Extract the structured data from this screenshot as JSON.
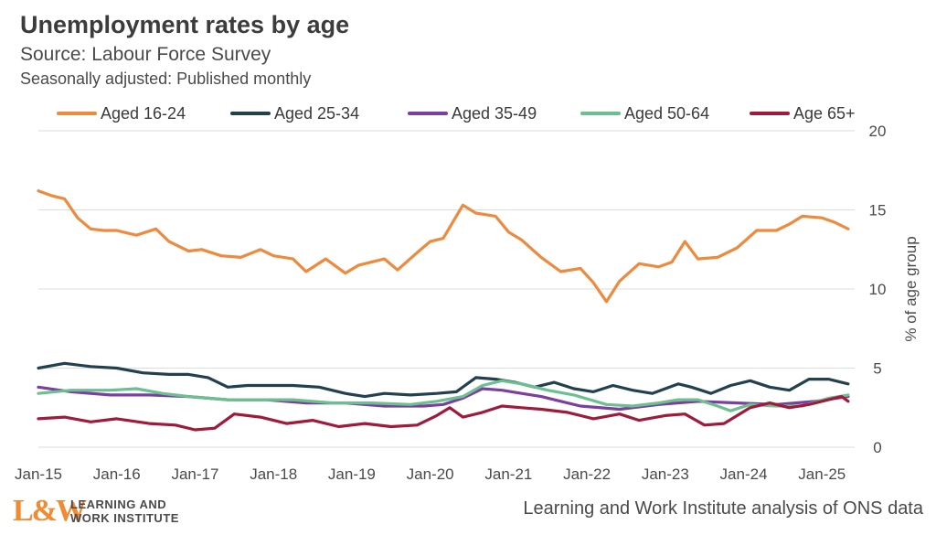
{
  "header": {
    "title": "Unemployment rates by age",
    "subtitle": "Source: Labour Force Survey",
    "subtitle2": "Seasonally adjusted: Published monthly"
  },
  "footer": {
    "logo_mark": "L&W",
    "logo_line1": "LEARNING AND",
    "logo_line2": "WORK INSTITUTE",
    "credit": "Learning and Work Institute analysis of ONS data"
  },
  "colors": {
    "aged_16_24": "#ee8a3e",
    "aged_25_34": "#23404f",
    "aged_35_49": "#7b3fa0",
    "aged_50_64": "#6cbf8e",
    "aged_65_plus": "#9e1b3c",
    "gridline": "#dcdcdc",
    "axis_text": "#4a4a4a"
  },
  "chart_data": {
    "type": "line",
    "ylabel": "% of age group",
    "ylim": [
      0,
      20
    ],
    "yticks": [
      "0",
      "5",
      "10",
      "15",
      "20"
    ],
    "y_axis_side": "right",
    "grid": "horizontal",
    "legend_position": "top",
    "xlim": [
      "2015-01",
      "2025-06"
    ],
    "xticks": [
      {
        "label": "Jan-15",
        "date": "2015-01"
      },
      {
        "label": "Jan-16",
        "date": "2016-01"
      },
      {
        "label": "Jan-17",
        "date": "2017-01"
      },
      {
        "label": "Jan-18",
        "date": "2018-01"
      },
      {
        "label": "Jan-19",
        "date": "2019-01"
      },
      {
        "label": "Jan-20",
        "date": "2020-01"
      },
      {
        "label": "Jan-21",
        "date": "2021-01"
      },
      {
        "label": "Jan-22",
        "date": "2022-01"
      },
      {
        "label": "Jan-23",
        "date": "2023-01"
      },
      {
        "label": "Jan-24",
        "date": "2024-01"
      },
      {
        "label": "Jan-25",
        "date": "2025-01"
      }
    ],
    "series": [
      {
        "name": "Aged 16-24",
        "color_key": "aged_16_24",
        "points": [
          [
            "2015-01",
            16.2
          ],
          [
            "2015-03",
            15.9
          ],
          [
            "2015-05",
            15.7
          ],
          [
            "2015-07",
            14.5
          ],
          [
            "2015-09",
            13.8
          ],
          [
            "2015-11",
            13.7
          ],
          [
            "2016-01",
            13.7
          ],
          [
            "2016-04",
            13.4
          ],
          [
            "2016-07",
            13.8
          ],
          [
            "2016-09",
            13.0
          ],
          [
            "2016-12",
            12.4
          ],
          [
            "2017-02",
            12.5
          ],
          [
            "2017-05",
            12.1
          ],
          [
            "2017-08",
            12.0
          ],
          [
            "2017-11",
            12.5
          ],
          [
            "2018-01",
            12.1
          ],
          [
            "2018-04",
            11.9
          ],
          [
            "2018-06",
            11.1
          ],
          [
            "2018-09",
            11.9
          ],
          [
            "2018-12",
            11.0
          ],
          [
            "2019-02",
            11.5
          ],
          [
            "2019-06",
            11.9
          ],
          [
            "2019-08",
            11.2
          ],
          [
            "2019-11",
            12.3
          ],
          [
            "2020-01",
            13.0
          ],
          [
            "2020-03",
            13.2
          ],
          [
            "2020-06",
            15.3
          ],
          [
            "2020-08",
            14.8
          ],
          [
            "2020-11",
            14.6
          ],
          [
            "2021-01",
            13.6
          ],
          [
            "2021-03",
            13.1
          ],
          [
            "2021-06",
            12.0
          ],
          [
            "2021-09",
            11.1
          ],
          [
            "2021-12",
            11.3
          ],
          [
            "2022-02",
            10.4
          ],
          [
            "2022-04",
            9.2
          ],
          [
            "2022-06",
            10.5
          ],
          [
            "2022-09",
            11.6
          ],
          [
            "2022-12",
            11.4
          ],
          [
            "2023-02",
            11.7
          ],
          [
            "2023-04",
            13.0
          ],
          [
            "2023-06",
            11.9
          ],
          [
            "2023-09",
            12.0
          ],
          [
            "2023-12",
            12.6
          ],
          [
            "2024-03",
            13.7
          ],
          [
            "2024-06",
            13.7
          ],
          [
            "2024-08",
            14.1
          ],
          [
            "2024-10",
            14.6
          ],
          [
            "2025-01",
            14.5
          ],
          [
            "2025-03",
            14.2
          ],
          [
            "2025-05",
            13.8
          ]
        ]
      },
      {
        "name": "Aged 25-34",
        "color_key": "aged_25_34",
        "points": [
          [
            "2015-01",
            5.0
          ],
          [
            "2015-05",
            5.3
          ],
          [
            "2015-09",
            5.1
          ],
          [
            "2016-01",
            5.0
          ],
          [
            "2016-05",
            4.7
          ],
          [
            "2016-09",
            4.6
          ],
          [
            "2016-12",
            4.6
          ],
          [
            "2017-03",
            4.4
          ],
          [
            "2017-06",
            3.8
          ],
          [
            "2017-09",
            3.9
          ],
          [
            "2018-01",
            3.9
          ],
          [
            "2018-04",
            3.9
          ],
          [
            "2018-08",
            3.8
          ],
          [
            "2018-12",
            3.4
          ],
          [
            "2019-03",
            3.2
          ],
          [
            "2019-06",
            3.4
          ],
          [
            "2019-10",
            3.3
          ],
          [
            "2020-02",
            3.4
          ],
          [
            "2020-05",
            3.5
          ],
          [
            "2020-08",
            4.4
          ],
          [
            "2020-11",
            4.3
          ],
          [
            "2021-02",
            4.1
          ],
          [
            "2021-05",
            3.8
          ],
          [
            "2021-08",
            4.1
          ],
          [
            "2021-11",
            3.7
          ],
          [
            "2022-02",
            3.5
          ],
          [
            "2022-05",
            3.9
          ],
          [
            "2022-08",
            3.6
          ],
          [
            "2022-11",
            3.4
          ],
          [
            "2023-03",
            4.0
          ],
          [
            "2023-05",
            3.8
          ],
          [
            "2023-08",
            3.4
          ],
          [
            "2023-11",
            3.9
          ],
          [
            "2024-02",
            4.2
          ],
          [
            "2024-05",
            3.8
          ],
          [
            "2024-08",
            3.6
          ],
          [
            "2024-11",
            4.3
          ],
          [
            "2025-02",
            4.3
          ],
          [
            "2025-05",
            4.0
          ]
        ]
      },
      {
        "name": "Aged 35-49",
        "color_key": "aged_35_49",
        "points": [
          [
            "2015-01",
            3.8
          ],
          [
            "2015-06",
            3.5
          ],
          [
            "2015-12",
            3.3
          ],
          [
            "2016-06",
            3.3
          ],
          [
            "2016-12",
            3.2
          ],
          [
            "2017-06",
            3.0
          ],
          [
            "2017-12",
            3.0
          ],
          [
            "2018-06",
            2.8
          ],
          [
            "2018-12",
            2.8
          ],
          [
            "2019-06",
            2.6
          ],
          [
            "2019-12",
            2.6
          ],
          [
            "2020-03",
            2.7
          ],
          [
            "2020-06",
            3.1
          ],
          [
            "2020-09",
            3.7
          ],
          [
            "2020-12",
            3.6
          ],
          [
            "2021-03",
            3.4
          ],
          [
            "2021-06",
            3.2
          ],
          [
            "2021-09",
            2.9
          ],
          [
            "2021-12",
            2.6
          ],
          [
            "2022-06",
            2.4
          ],
          [
            "2022-12",
            2.7
          ],
          [
            "2023-06",
            2.9
          ],
          [
            "2023-12",
            2.8
          ],
          [
            "2024-06",
            2.7
          ],
          [
            "2024-12",
            2.9
          ],
          [
            "2025-05",
            3.2
          ]
        ]
      },
      {
        "name": "Aged 50-64",
        "color_key": "aged_50_64",
        "points": [
          [
            "2015-01",
            3.4
          ],
          [
            "2015-06",
            3.6
          ],
          [
            "2015-12",
            3.6
          ],
          [
            "2016-04",
            3.7
          ],
          [
            "2016-08",
            3.4
          ],
          [
            "2016-12",
            3.2
          ],
          [
            "2017-06",
            3.0
          ],
          [
            "2017-12",
            3.0
          ],
          [
            "2018-04",
            3.0
          ],
          [
            "2018-10",
            2.8
          ],
          [
            "2019-04",
            2.8
          ],
          [
            "2019-10",
            2.7
          ],
          [
            "2020-02",
            2.9
          ],
          [
            "2020-06",
            3.2
          ],
          [
            "2020-09",
            3.9
          ],
          [
            "2020-12",
            4.2
          ],
          [
            "2021-03",
            4.0
          ],
          [
            "2021-07",
            3.6
          ],
          [
            "2021-11",
            3.3
          ],
          [
            "2022-04",
            2.7
          ],
          [
            "2022-08",
            2.6
          ],
          [
            "2022-12",
            2.8
          ],
          [
            "2023-03",
            3.0
          ],
          [
            "2023-06",
            3.0
          ],
          [
            "2023-09",
            2.6
          ],
          [
            "2023-11",
            2.3
          ],
          [
            "2024-02",
            2.7
          ],
          [
            "2024-06",
            2.6
          ],
          [
            "2024-10",
            2.6
          ],
          [
            "2025-02",
            3.1
          ],
          [
            "2025-05",
            3.3
          ]
        ]
      },
      {
        "name": "Age 65+",
        "color_key": "aged_65_plus",
        "points": [
          [
            "2015-01",
            1.8
          ],
          [
            "2015-05",
            1.9
          ],
          [
            "2015-09",
            1.6
          ],
          [
            "2016-01",
            1.8
          ],
          [
            "2016-06",
            1.5
          ],
          [
            "2016-10",
            1.4
          ],
          [
            "2017-01",
            1.1
          ],
          [
            "2017-04",
            1.2
          ],
          [
            "2017-07",
            2.1
          ],
          [
            "2017-11",
            1.9
          ],
          [
            "2018-03",
            1.5
          ],
          [
            "2018-07",
            1.7
          ],
          [
            "2018-11",
            1.3
          ],
          [
            "2019-03",
            1.5
          ],
          [
            "2019-07",
            1.3
          ],
          [
            "2019-11",
            1.4
          ],
          [
            "2020-02",
            2.0
          ],
          [
            "2020-04",
            2.5
          ],
          [
            "2020-06",
            1.9
          ],
          [
            "2020-09",
            2.2
          ],
          [
            "2020-12",
            2.6
          ],
          [
            "2021-03",
            2.5
          ],
          [
            "2021-06",
            2.4
          ],
          [
            "2021-10",
            2.2
          ],
          [
            "2022-02",
            1.8
          ],
          [
            "2022-06",
            2.1
          ],
          [
            "2022-09",
            1.7
          ],
          [
            "2023-01",
            2.0
          ],
          [
            "2023-04",
            2.1
          ],
          [
            "2023-07",
            1.4
          ],
          [
            "2023-10",
            1.5
          ],
          [
            "2024-02",
            2.5
          ],
          [
            "2024-05",
            2.8
          ],
          [
            "2024-08",
            2.5
          ],
          [
            "2024-11",
            2.7
          ],
          [
            "2025-02",
            3.0
          ],
          [
            "2025-04",
            3.2
          ],
          [
            "2025-05",
            2.9
          ]
        ]
      }
    ]
  }
}
